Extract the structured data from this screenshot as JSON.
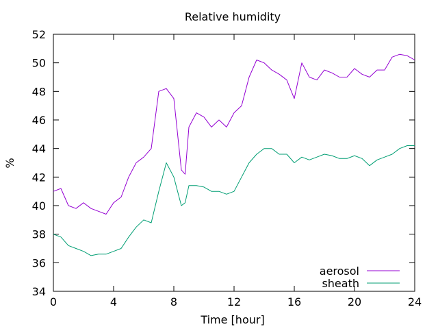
{
  "chart_data": {
    "type": "line",
    "title": "Relative humidity",
    "xlabel": "Time [hour]",
    "ylabel": "%",
    "xlim": [
      0,
      24
    ],
    "ylim": [
      34,
      52
    ],
    "xticks": [
      0,
      4,
      8,
      12,
      16,
      20,
      24
    ],
    "yticks": [
      34,
      36,
      38,
      40,
      42,
      44,
      46,
      48,
      50,
      52
    ],
    "grid": false,
    "legend_position": "bottom-right",
    "x": [
      0,
      0.5,
      1,
      1.5,
      2,
      2.5,
      3,
      3.5,
      4,
      4.5,
      5,
      5.5,
      6,
      6.5,
      7,
      7.5,
      8,
      8.25,
      8.5,
      8.75,
      9,
      9.5,
      10,
      10.5,
      11,
      11.5,
      12,
      12.5,
      13,
      13.5,
      14,
      14.5,
      15,
      15.5,
      16,
      16.5,
      17,
      17.5,
      18,
      18.5,
      19,
      19.5,
      20,
      20.5,
      21,
      21.5,
      22,
      22.5,
      23,
      23.5,
      24
    ],
    "series": [
      {
        "name": "aerosol",
        "color": "#9400d3",
        "values": [
          41.0,
          41.2,
          40.0,
          39.8,
          40.2,
          39.8,
          39.6,
          39.4,
          40.2,
          40.6,
          42.0,
          43.0,
          43.4,
          44.0,
          48.0,
          48.2,
          47.5,
          45.0,
          42.5,
          42.2,
          45.5,
          46.5,
          46.2,
          45.5,
          46.0,
          45.5,
          46.5,
          47.0,
          49.0,
          50.2,
          50.0,
          49.5,
          49.2,
          48.8,
          47.5,
          50.0,
          49.0,
          48.8,
          49.5,
          49.3,
          49.0,
          49.0,
          49.6,
          49.2,
          49.0,
          49.5,
          49.5,
          50.4,
          50.6,
          50.5,
          50.2
        ]
      },
      {
        "name": "sheath",
        "color": "#009e73",
        "values": [
          38.0,
          37.8,
          37.2,
          37.0,
          36.8,
          36.5,
          36.6,
          36.6,
          36.8,
          37.0,
          37.8,
          38.5,
          39.0,
          38.8,
          41.0,
          43.0,
          42.0,
          41.0,
          40.0,
          40.2,
          41.4,
          41.4,
          41.3,
          41.0,
          41.0,
          40.8,
          41.0,
          42.0,
          43.0,
          43.6,
          44.0,
          44.0,
          43.6,
          43.6,
          43.0,
          43.4,
          43.2,
          43.4,
          43.6,
          43.5,
          43.3,
          43.3,
          43.5,
          43.3,
          42.8,
          43.2,
          43.4,
          43.6,
          44.0,
          44.2,
          44.2
        ]
      }
    ]
  }
}
